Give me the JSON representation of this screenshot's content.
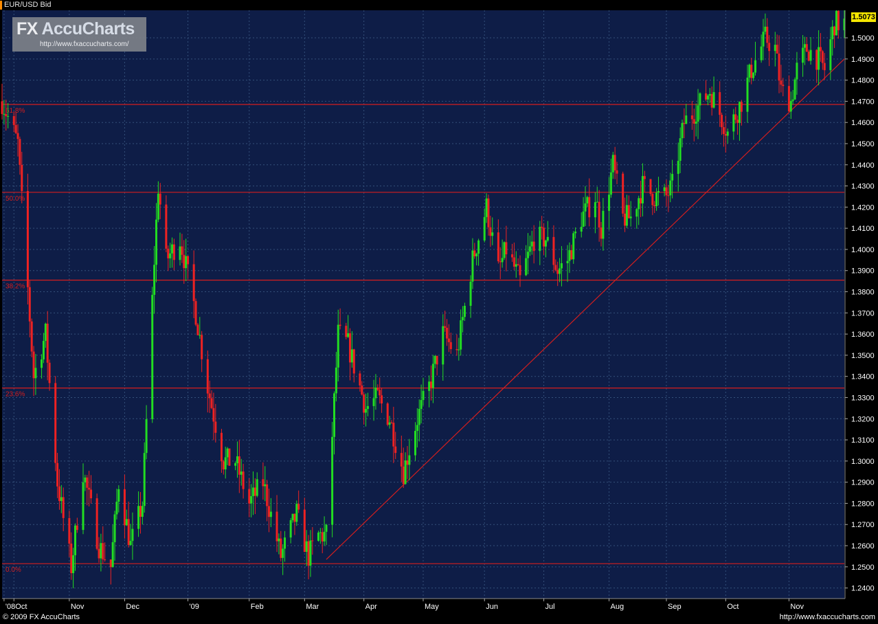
{
  "header": {
    "title": "EUR/USD Bid"
  },
  "logo": {
    "brand": "FX AccuCharts",
    "url": "http://www.fxaccucharts.com/"
  },
  "footer": {
    "copyright": "© 2009 FX AccuCharts",
    "site": "http://www.fxaccucharts.com"
  },
  "colors": {
    "background": "#0e1d47",
    "up": "#22dd22",
    "down": "#ee2222",
    "grid": "#34507a",
    "level": "#d41e1e",
    "last_price_tag": "#f5e600"
  },
  "chart_data": {
    "type": "candlestick",
    "symbol": "EUR/USD",
    "period": "daily",
    "last_price": "1.5073",
    "ylim": [
      1.235,
      1.513
    ],
    "y_ticks": [
      "1.5000",
      "1.4900",
      "1.4800",
      "1.4700",
      "1.4600",
      "1.4500",
      "1.4400",
      "1.4300",
      "1.4200",
      "1.4100",
      "1.4000",
      "1.3900",
      "1.3800",
      "1.3700",
      "1.3600",
      "1.3500",
      "1.3400",
      "1.3300",
      "1.3200",
      "1.3100",
      "1.3000",
      "1.2900",
      "1.2800",
      "1.2700",
      "1.2600",
      "1.2500",
      "1.2400"
    ],
    "x_ticks": [
      {
        "label": "'08",
        "date": "2008-10-01"
      },
      {
        "label": "Oct",
        "date": "2008-10-06"
      },
      {
        "label": "Nov",
        "date": "2008-11-03"
      },
      {
        "label": "Dec",
        "date": "2008-12-01"
      },
      {
        "label": "'09",
        "date": "2009-01-02"
      },
      {
        "label": "Feb",
        "date": "2009-02-02"
      },
      {
        "label": "Mar",
        "date": "2009-03-02"
      },
      {
        "label": "Apr",
        "date": "2009-04-01"
      },
      {
        "label": "May",
        "date": "2009-05-01"
      },
      {
        "label": "Jun",
        "date": "2009-06-01"
      },
      {
        "label": "Jul",
        "date": "2009-07-01"
      },
      {
        "label": "Aug",
        "date": "2009-08-03"
      },
      {
        "label": "Sep",
        "date": "2009-09-01"
      },
      {
        "label": "Oct",
        "date": "2009-10-01"
      },
      {
        "label": "Nov",
        "date": "2009-11-02"
      }
    ],
    "x_range": [
      "2008-09-30",
      "2009-11-30"
    ],
    "fib_levels": [
      {
        "label": "61.8%",
        "price": 1.4685
      },
      {
        "label": "50.0%",
        "price": 1.427
      },
      {
        "label": "38.2%",
        "price": 1.3855
      },
      {
        "label": "23.6%",
        "price": 1.3345
      },
      {
        "label": "0.0%",
        "price": 1.2515
      }
    ],
    "trendline": {
      "start": {
        "date": "2009-03-13",
        "price": 1.2535
      },
      "end": {
        "date": "2009-11-30",
        "price": 1.49
      }
    },
    "key_points": [
      {
        "date": "2008-09-30",
        "price": 1.47
      },
      {
        "date": "2008-10-08",
        "price": 1.45
      },
      {
        "date": "2008-10-16",
        "price": 1.34
      },
      {
        "date": "2008-10-22",
        "price": 1.36
      },
      {
        "date": "2008-10-28",
        "price": 1.29
      },
      {
        "date": "2008-11-04",
        "price": 1.25
      },
      {
        "date": "2008-11-10",
        "price": 1.295
      },
      {
        "date": "2008-11-18",
        "price": 1.26
      },
      {
        "date": "2008-11-24",
        "price": 1.25
      },
      {
        "date": "2008-11-28",
        "price": 1.29
      },
      {
        "date": "2008-12-04",
        "price": 1.26
      },
      {
        "date": "2008-12-10",
        "price": 1.28
      },
      {
        "date": "2008-12-16",
        "price": 1.395
      },
      {
        "date": "2008-12-18",
        "price": 1.43
      },
      {
        "date": "2008-12-22",
        "price": 1.395
      },
      {
        "date": "2008-12-29",
        "price": 1.405
      },
      {
        "date": "2009-01-06",
        "price": 1.37
      },
      {
        "date": "2009-01-12",
        "price": 1.335
      },
      {
        "date": "2009-01-20",
        "price": 1.3
      },
      {
        "date": "2009-01-26",
        "price": 1.3
      },
      {
        "date": "2009-02-02",
        "price": 1.28
      },
      {
        "date": "2009-02-09",
        "price": 1.29
      },
      {
        "date": "2009-02-18",
        "price": 1.255
      },
      {
        "date": "2009-02-26",
        "price": 1.275
      },
      {
        "date": "2009-03-04",
        "price": 1.255
      },
      {
        "date": "2009-03-09",
        "price": 1.265
      },
      {
        "date": "2009-03-13",
        "price": 1.265
      },
      {
        "date": "2009-03-19",
        "price": 1.36
      },
      {
        "date": "2009-03-24",
        "price": 1.355
      },
      {
        "date": "2009-04-02",
        "price": 1.325
      },
      {
        "date": "2009-04-08",
        "price": 1.33
      },
      {
        "date": "2009-04-14",
        "price": 1.32
      },
      {
        "date": "2009-04-21",
        "price": 1.295
      },
      {
        "date": "2009-04-28",
        "price": 1.32
      },
      {
        "date": "2009-05-04",
        "price": 1.335
      },
      {
        "date": "2009-05-11",
        "price": 1.36
      },
      {
        "date": "2009-05-18",
        "price": 1.35
      },
      {
        "date": "2009-05-26",
        "price": 1.395
      },
      {
        "date": "2009-06-02",
        "price": 1.42
      },
      {
        "date": "2009-06-08",
        "price": 1.39
      },
      {
        "date": "2009-06-12",
        "price": 1.4
      },
      {
        "date": "2009-06-19",
        "price": 1.385
      },
      {
        "date": "2009-06-26",
        "price": 1.405
      },
      {
        "date": "2009-07-02",
        "price": 1.405
      },
      {
        "date": "2009-07-08",
        "price": 1.39
      },
      {
        "date": "2009-07-13",
        "price": 1.395
      },
      {
        "date": "2009-07-20",
        "price": 1.415
      },
      {
        "date": "2009-07-27",
        "price": 1.425
      },
      {
        "date": "2009-07-30",
        "price": 1.41
      },
      {
        "date": "2009-08-05",
        "price": 1.44
      },
      {
        "date": "2009-08-10",
        "price": 1.415
      },
      {
        "date": "2009-08-14",
        "price": 1.415
      },
      {
        "date": "2009-08-20",
        "price": 1.43
      },
      {
        "date": "2009-08-26",
        "price": 1.425
      },
      {
        "date": "2009-09-01",
        "price": 1.425
      },
      {
        "date": "2009-09-04",
        "price": 1.43
      },
      {
        "date": "2009-09-10",
        "price": 1.46
      },
      {
        "date": "2009-09-15",
        "price": 1.465
      },
      {
        "date": "2009-09-23",
        "price": 1.475
      },
      {
        "date": "2009-09-30",
        "price": 1.46
      },
      {
        "date": "2009-10-02",
        "price": 1.455
      },
      {
        "date": "2009-10-09",
        "price": 1.47
      },
      {
        "date": "2009-10-14",
        "price": 1.485
      },
      {
        "date": "2009-10-21",
        "price": 1.5
      },
      {
        "date": "2009-10-26",
        "price": 1.495
      },
      {
        "date": "2009-10-29",
        "price": 1.475
      },
      {
        "date": "2009-11-03",
        "price": 1.47
      },
      {
        "date": "2009-11-06",
        "price": 1.485
      },
      {
        "date": "2009-11-11",
        "price": 1.495
      },
      {
        "date": "2009-11-17",
        "price": 1.49
      },
      {
        "date": "2009-11-20",
        "price": 1.485
      },
      {
        "date": "2009-11-25",
        "price": 1.507
      }
    ]
  }
}
